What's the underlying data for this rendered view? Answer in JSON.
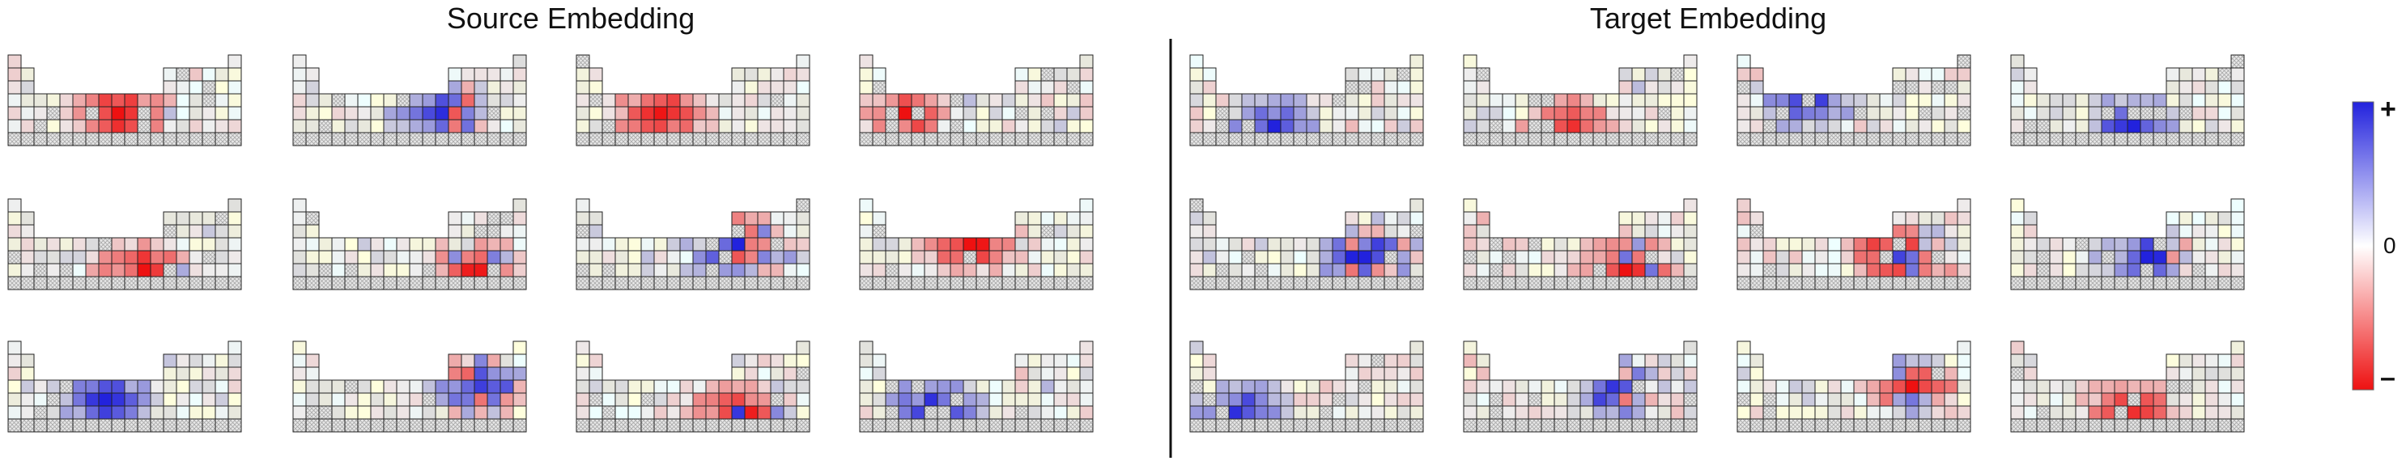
{
  "panels": {
    "source": {
      "title": "Source Embedding",
      "grids": 12
    },
    "target": {
      "title": "Target Embedding",
      "grids": 12
    }
  },
  "colorbar": {
    "top_label": "+",
    "mid_label": "0",
    "bottom_label": "–",
    "colors": {
      "positive": "#2222dd",
      "zero": "#ffffff",
      "negative": "#ee1111"
    }
  },
  "cell_colors": {
    "empty": "#e8e8e8",
    "hatch": "#a8a8a8",
    "border": "#222222"
  }
}
